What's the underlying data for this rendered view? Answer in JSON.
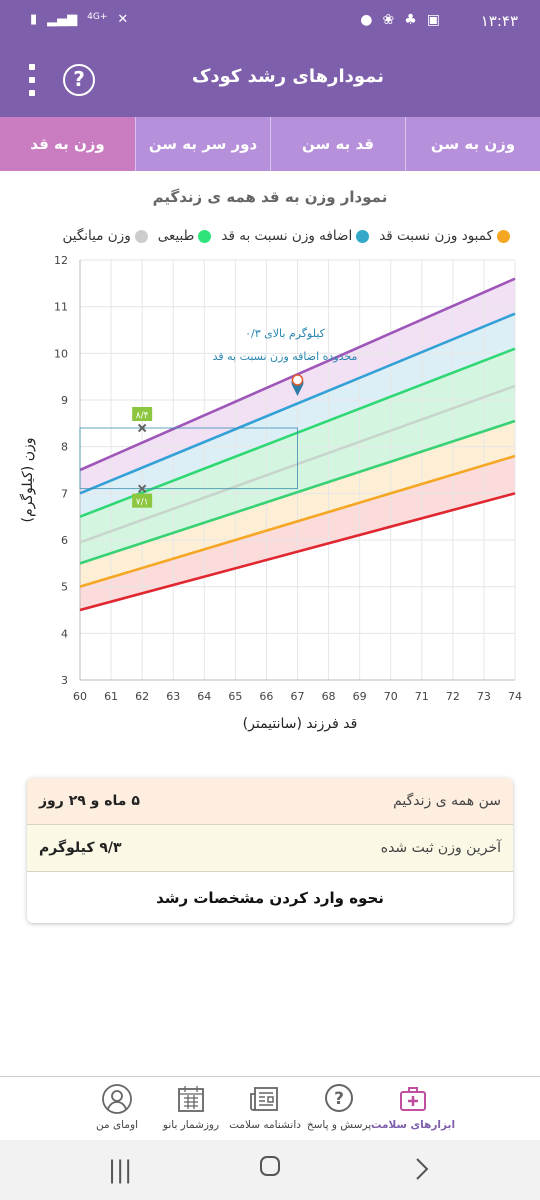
{
  "status_bar": {
    "time": "۱۳:۴۳",
    "network": "4G+",
    "icons": [
      "battery-icon",
      "signal-icon",
      "network-icon",
      "mute-icon",
      "image-icon",
      "notification-icon",
      "app-icon",
      "dot-icon"
    ]
  },
  "app_bar": {
    "title": "نمودارهای رشد کودک",
    "help_glyph": "?"
  },
  "tabs": [
    {
      "label": "وزن به سن",
      "active": false
    },
    {
      "label": "قد به سن",
      "active": false
    },
    {
      "label": "دور سر به سن",
      "active": false
    },
    {
      "label": "وزن به قد",
      "active": true
    }
  ],
  "chart": {
    "title": "نمودار وزن به قد همه ی زندگیم",
    "legend": [
      {
        "label": "کمبود وزن نسبت قد",
        "color": "#f5a623"
      },
      {
        "label": "اضافه وزن نسبت به قد",
        "color": "#33a8c9"
      },
      {
        "label": "طبیعی",
        "color": "#2ee37a"
      },
      {
        "label": "وزن میانگین",
        "color": "#cccccc"
      }
    ],
    "xlabel": "قد فرزند (سانتیمتر)",
    "ylabel": "وزن (کیلوگرم)",
    "annotation_line1": "۰/۳ کیلوگرم بالای",
    "annotation_line2": "محدوده اضافه وزن نسبت به قد",
    "marker_upper": "۸/۴",
    "marker_lower": "۷/۱"
  },
  "chart_data": {
    "type": "line",
    "xlim": [
      60,
      74
    ],
    "ylim": [
      3,
      12
    ],
    "x_ticks": [
      60,
      61,
      62,
      63,
      64,
      65,
      66,
      67,
      68,
      69,
      70,
      71,
      72,
      73,
      74
    ],
    "y_ticks": [
      3,
      4,
      5,
      6,
      7,
      8,
      9,
      10,
      11,
      12
    ],
    "grid": true,
    "x": [
      60,
      74
    ],
    "series": [
      {
        "color": "#9e57b8",
        "values": [
          7.5,
          11.6
        ]
      },
      {
        "color": "#33a1d6",
        "values": [
          7.0,
          10.85
        ]
      },
      {
        "color": "#2fd874",
        "values": [
          6.5,
          10.1
        ]
      },
      {
        "color": "#c8d5cd",
        "values": [
          5.95,
          9.3
        ]
      },
      {
        "color": "#38d174",
        "values": [
          5.5,
          8.55
        ]
      },
      {
        "color": "#f5a623",
        "values": [
          5.0,
          7.8
        ]
      },
      {
        "color": "#e0262f",
        "values": [
          4.5,
          7.0
        ]
      }
    ],
    "bands": [
      {
        "between": [
          0,
          1
        ],
        "color": "#f0dcf3"
      },
      {
        "between": [
          1,
          2
        ],
        "color": "#d7ecf4"
      },
      {
        "between": [
          2,
          4
        ],
        "color": "#cdf4dc"
      },
      {
        "between": [
          4,
          5
        ],
        "color": "#fdeccf"
      },
      {
        "between": [
          5,
          6
        ],
        "color": "#fad6d4"
      }
    ],
    "points": [
      {
        "x": 62,
        "y": 8.4,
        "label": "۸/۴"
      },
      {
        "x": 62,
        "y": 7.1,
        "label": "۷/۱"
      },
      {
        "x": 67,
        "y": 9.3,
        "label": "pin"
      }
    ],
    "reference_box": {
      "x": [
        60,
        67
      ],
      "y": [
        7.1,
        8.4
      ]
    }
  },
  "info_card": {
    "age_label": "سن همه ی زندگیم",
    "age_value": "۵ ماه و ۲۹ روز",
    "weight_label": "آخرین وزن ثبت شده",
    "weight_value": "۹/۳ کیلوگرم",
    "how_to_label": "نحوه وارد کردن مشخصات رشد"
  },
  "bottom_nav": [
    {
      "label": "ابزارهای سلامت",
      "icon": "medical-kit-icon",
      "active": true
    },
    {
      "label": "پرسش و پاسخ",
      "icon": "question-icon",
      "active": false
    },
    {
      "label": "دانشنامه سلامت",
      "icon": "newspaper-icon",
      "active": false
    },
    {
      "label": "روزشمار بانو",
      "icon": "calendar-icon",
      "active": false
    },
    {
      "label": "اومای من",
      "icon": "profile-icon",
      "active": false
    }
  ],
  "system_nav": [
    "back-icon",
    "home-icon",
    "recents-icon"
  ]
}
